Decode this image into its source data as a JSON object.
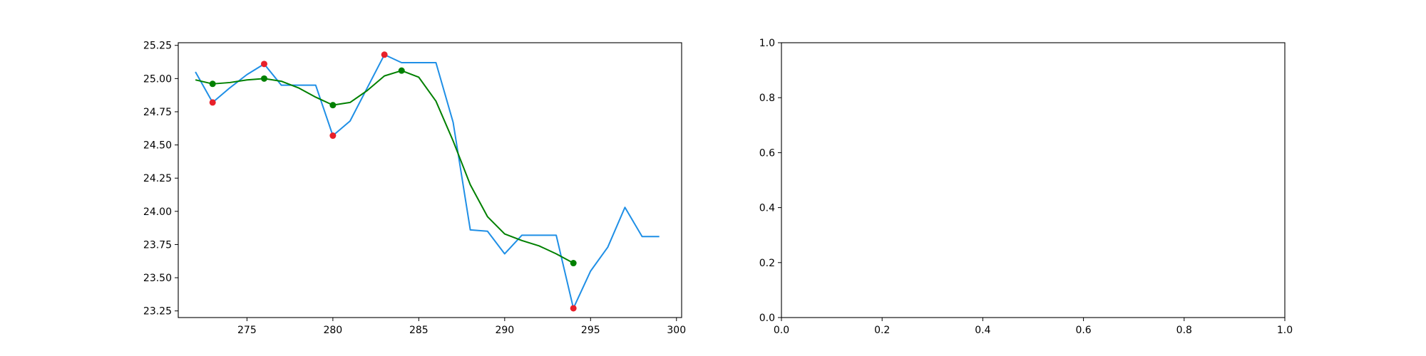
{
  "chart_data": [
    {
      "type": "line",
      "xlim": [
        271,
        300.3
      ],
      "ylim": [
        23.2,
        25.27
      ],
      "x_ticks": [
        275,
        280,
        285,
        290,
        295,
        300
      ],
      "y_ticks": [
        23.25,
        23.5,
        23.75,
        24.0,
        24.25,
        24.5,
        24.75,
        25.0,
        25.25
      ],
      "x_tick_labels": [
        "275",
        "280",
        "285",
        "290",
        "295",
        "300"
      ],
      "y_tick_labels": [
        "23.25",
        "23.50",
        "23.75",
        "24.00",
        "24.25",
        "24.50",
        "24.75",
        "25.00",
        "25.25"
      ],
      "grid": false,
      "series": [
        {
          "color": "#1f8fe6",
          "x": [
            272,
            273,
            274,
            275,
            276,
            277,
            278,
            279,
            280,
            281,
            282,
            283,
            284,
            285,
            286,
            287,
            288,
            289,
            290,
            291,
            292,
            293,
            294,
            295,
            296,
            297,
            298,
            299
          ],
          "y": [
            25.05,
            24.82,
            24.93,
            25.03,
            25.11,
            24.95,
            24.95,
            24.95,
            24.57,
            24.68,
            24.93,
            25.18,
            25.12,
            25.12,
            25.12,
            24.67,
            23.86,
            23.85,
            23.68,
            23.82,
            23.82,
            23.82,
            23.27,
            23.55,
            23.73,
            24.03,
            23.81,
            23.81
          ]
        },
        {
          "color": "#008000",
          "x": [
            272,
            273,
            274,
            275,
            276,
            277,
            278,
            279,
            280,
            281,
            282,
            283,
            284,
            285,
            286,
            287,
            288,
            289,
            290,
            291,
            292,
            293,
            294
          ],
          "y": [
            24.99,
            24.96,
            24.97,
            24.99,
            25.0,
            24.98,
            24.93,
            24.86,
            24.8,
            24.82,
            24.91,
            25.02,
            25.06,
            25.01,
            24.83,
            24.53,
            24.2,
            23.96,
            23.83,
            23.78,
            23.74,
            23.68,
            23.61
          ]
        }
      ],
      "scatter": [
        {
          "color": "#e8202a",
          "x": [
            273,
            276,
            280,
            283,
            294
          ],
          "y": [
            24.82,
            25.11,
            24.57,
            25.18,
            23.27
          ]
        },
        {
          "color": "#008000",
          "x": [
            273,
            276,
            280,
            284,
            294
          ],
          "y": [
            24.96,
            25.0,
            24.8,
            25.06,
            23.61
          ]
        }
      ]
    },
    {
      "type": "line",
      "xlim": [
        0.0,
        1.0
      ],
      "ylim": [
        0.0,
        1.0
      ],
      "x_ticks": [
        0.0,
        0.2,
        0.4,
        0.6,
        0.8,
        1.0
      ],
      "y_ticks": [
        0.0,
        0.2,
        0.4,
        0.6,
        0.8,
        1.0
      ],
      "x_tick_labels": [
        "0.0",
        "0.2",
        "0.4",
        "0.6",
        "0.8",
        "1.0"
      ],
      "y_tick_labels": [
        "0.0",
        "0.2",
        "0.4",
        "0.6",
        "0.8",
        "1.0"
      ],
      "grid": false,
      "series": []
    }
  ]
}
